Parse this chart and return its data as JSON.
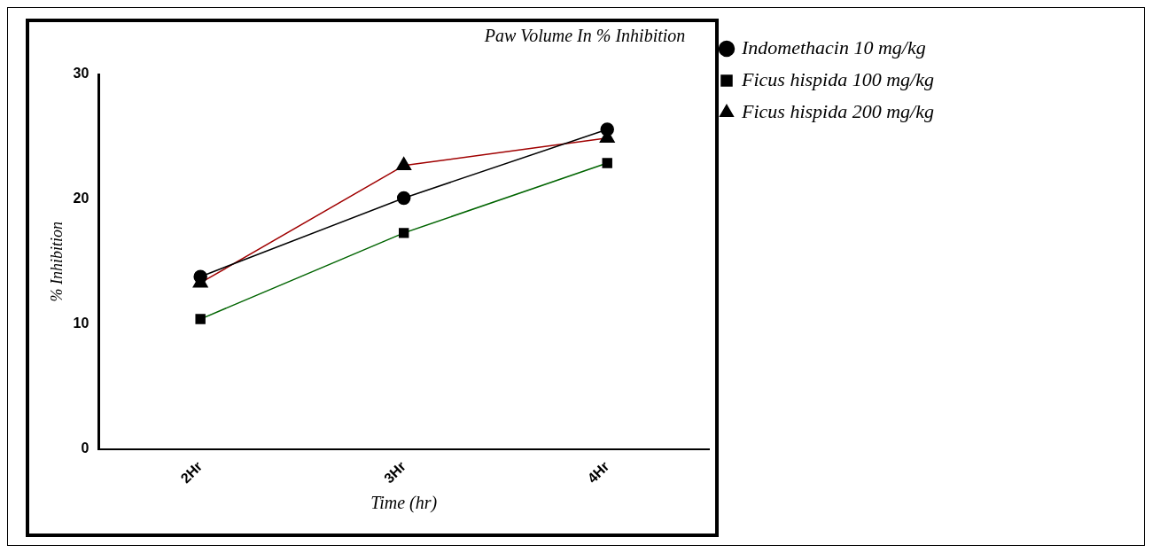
{
  "chart_data": {
    "type": "line",
    "title": "Paw Volume In % Inhibition",
    "xlabel": "Time (hr)",
    "ylabel": "% Inhibition",
    "categories": [
      "2Hr",
      "3Hr",
      "4Hr"
    ],
    "series": [
      {
        "name": "Indomethacin 10 mg/kg",
        "color": "#000000",
        "marker": "circle",
        "values": [
          13.8,
          20.1,
          25.6
        ]
      },
      {
        "name": "Ficus hispida 100 mg/kg",
        "color": "#006400",
        "marker": "square",
        "values": [
          10.4,
          17.3,
          22.9
        ]
      },
      {
        "name": "Ficus hispida 200 mg/kg",
        "color": "#a00000",
        "marker": "triangle",
        "values": [
          13.3,
          22.7,
          24.9
        ]
      }
    ],
    "ylim": [
      0,
      30
    ],
    "yticks": [
      0,
      10,
      20,
      30
    ],
    "grid": false,
    "legend": "top right",
    "line_style": "solid"
  }
}
